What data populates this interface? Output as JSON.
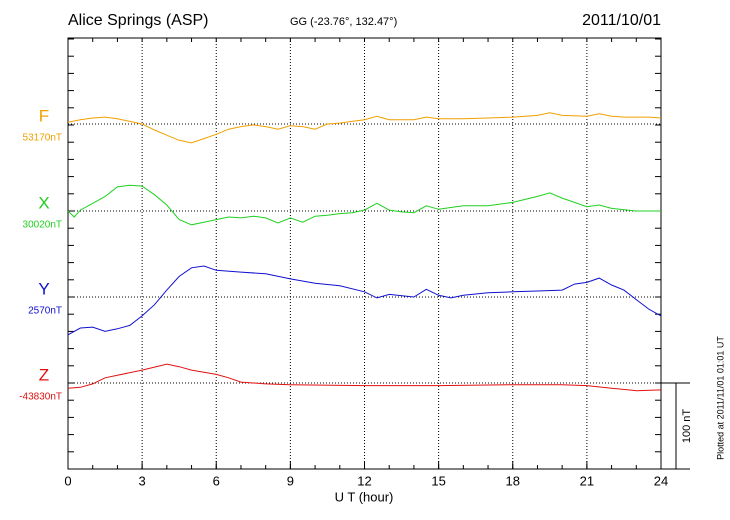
{
  "chart_data": {
    "type": "line",
    "title": "Alice Springs (ASP)",
    "subtitle": "GG (-23.76°, 132.47°)",
    "date": "2011/10/01",
    "xlabel": "U T (hour)",
    "footnote": "Plotted at 2011/11/01 01:01 UT",
    "xlim": [
      0,
      24
    ],
    "xticks": [
      0,
      3,
      6,
      9,
      12,
      15,
      18,
      21,
      24
    ],
    "grid": true,
    "scale_bar": {
      "value": 100,
      "label": "100 nT"
    },
    "series": [
      {
        "name": "F",
        "color": "#f0a000",
        "baseline": 53170,
        "baseline_label": "53170nT",
        "x": [
          0,
          0.5,
          1,
          1.5,
          2,
          2.5,
          3,
          3.5,
          4,
          4.5,
          5,
          5.5,
          6,
          6.5,
          7,
          7.5,
          8,
          8.5,
          9,
          9.5,
          10,
          10.5,
          11,
          11.5,
          12,
          12.5,
          13,
          13.5,
          14,
          14.5,
          15,
          15.5,
          16,
          17,
          18,
          19,
          19.5,
          20,
          21,
          21.5,
          22,
          22.5,
          23,
          23.5,
          24
        ],
        "values": [
          53172,
          53175,
          53177,
          53178,
          53176,
          53173,
          53170,
          53163,
          53157,
          53151,
          53148,
          53153,
          53158,
          53164,
          53167,
          53169,
          53167,
          53164,
          53168,
          53167,
          53164,
          53170,
          53171,
          53173,
          53175,
          53179,
          53175,
          53175,
          53175,
          53178,
          53176,
          53176,
          53176,
          53177,
          53178,
          53180,
          53183,
          53180,
          53179,
          53182,
          53179,
          53178,
          53178,
          53178,
          53177
        ]
      },
      {
        "name": "X",
        "color": "#20d020",
        "baseline": 30020,
        "baseline_label": "30020nT",
        "x": [
          0,
          0.25,
          0.5,
          1,
          1.5,
          2,
          2.5,
          3,
          3.5,
          4,
          4.5,
          5,
          5.5,
          6,
          6.5,
          7,
          7.5,
          8,
          8.5,
          9,
          9.5,
          10,
          10.5,
          11,
          11.5,
          12,
          12.5,
          13,
          13.5,
          14,
          14.5,
          15,
          16,
          17,
          18,
          19,
          19.5,
          20,
          21,
          21.5,
          22,
          23,
          24
        ],
        "values": [
          30020,
          30013,
          30021,
          30029,
          30037,
          30048,
          30050,
          30049,
          30039,
          30027,
          30010,
          30004,
          30007,
          30010,
          30013,
          30012,
          30014,
          30012,
          30006,
          30012,
          30007,
          30014,
          30015,
          30017,
          30018,
          30021,
          30029,
          30021,
          30019,
          30018,
          30026,
          30022,
          30026,
          30026,
          30030,
          30037,
          30041,
          30035,
          30025,
          30027,
          30023,
          30020,
          30020
        ]
      },
      {
        "name": "Y",
        "color": "#1010d0",
        "baseline": 2570,
        "baseline_label": "2570nT",
        "x": [
          0,
          0.5,
          1,
          1.5,
          2,
          2.5,
          3,
          3.5,
          4,
          4.5,
          5,
          5.5,
          6,
          7,
          8,
          9,
          10,
          11,
          12,
          12.5,
          13,
          14,
          14.5,
          15,
          15.5,
          16,
          17,
          18,
          19,
          20,
          20.5,
          21,
          21.5,
          22,
          22.5,
          23,
          23.5,
          24
        ],
        "values": [
          2526,
          2534,
          2535,
          2530,
          2533,
          2537,
          2548,
          2561,
          2578,
          2594,
          2604,
          2606,
          2601,
          2599,
          2597,
          2591,
          2586,
          2583,
          2576,
          2569,
          2573,
          2570,
          2579,
          2572,
          2569,
          2572,
          2575,
          2576,
          2577,
          2578,
          2585,
          2587,
          2592,
          2584,
          2578,
          2567,
          2556,
          2548
        ]
      },
      {
        "name": "Z",
        "color": "#e01010",
        "baseline": -43830,
        "baseline_label": "-43830nT",
        "x": [
          0,
          0.5,
          1,
          1.5,
          2,
          3,
          4,
          4.5,
          5,
          6,
          6.5,
          7,
          8,
          9,
          12,
          15,
          18,
          20,
          21,
          22,
          23,
          24
        ],
        "values": [
          -43836,
          -43835,
          -43831,
          -43824,
          -43821,
          -43815,
          -43808,
          -43811,
          -43815,
          -43820,
          -43824,
          -43829,
          -43831,
          -43832,
          -43833,
          -43833,
          -43832,
          -43832,
          -43833,
          -43836,
          -43839,
          -43838
        ]
      }
    ]
  }
}
